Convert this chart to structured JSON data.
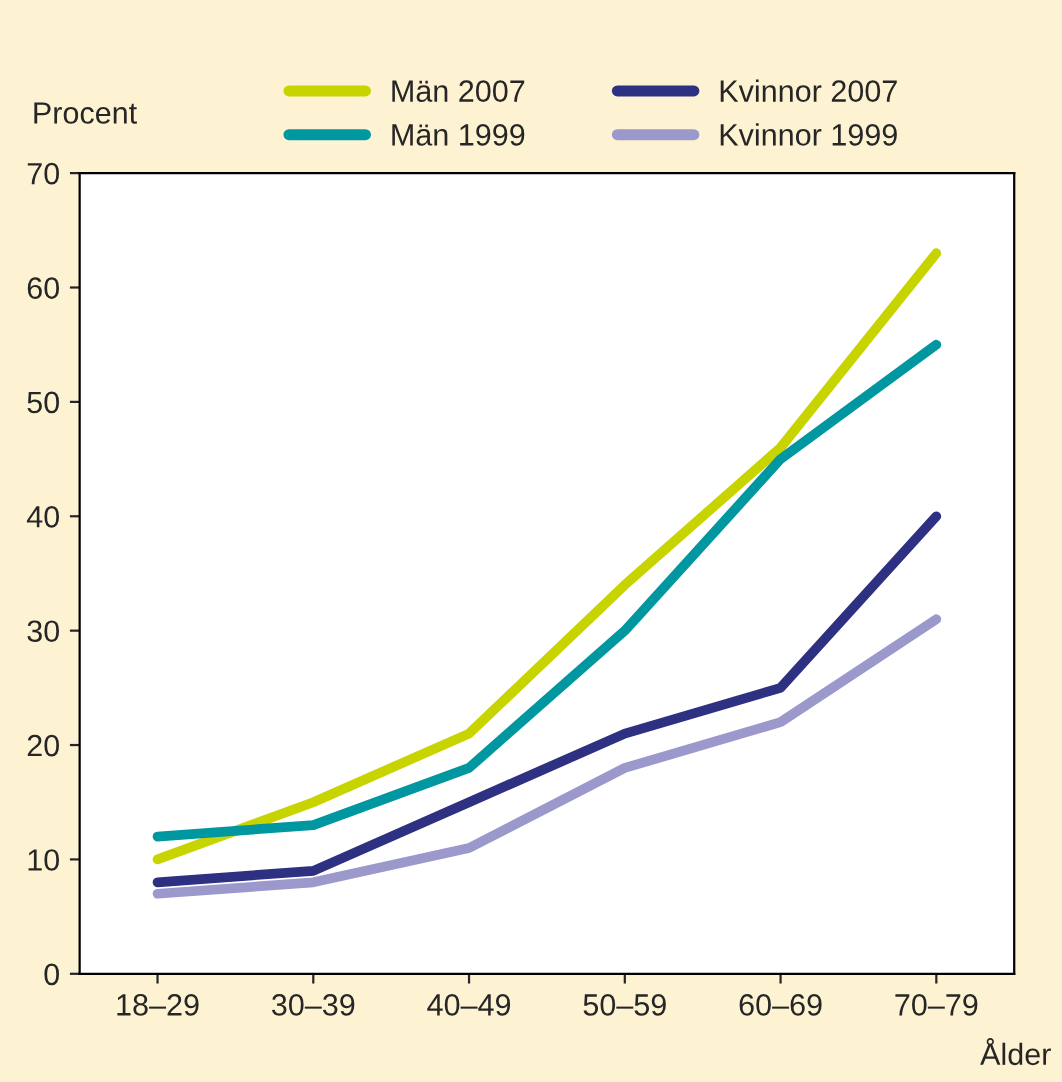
{
  "chart_data": {
    "type": "line",
    "xlabel": "Ålder",
    "ylabel": "Procent",
    "categories": [
      "18–29",
      "30–39",
      "40–49",
      "50–59",
      "60–69",
      "70–79"
    ],
    "series": [
      {
        "name": "Män 2007",
        "color": "#c8d400",
        "values": [
          10,
          15,
          21,
          34,
          46,
          63
        ]
      },
      {
        "name": "Män 1999",
        "color": "#0097a0",
        "values": [
          12,
          13,
          18,
          30,
          45,
          55
        ]
      },
      {
        "name": "Kvinnor 2007",
        "color": "#2e3181",
        "values": [
          8,
          9,
          15,
          21,
          25,
          40
        ]
      },
      {
        "name": "Kvinnor 1999",
        "color": "#9b98cc",
        "values": [
          7,
          8,
          11,
          18,
          22,
          31
        ]
      }
    ],
    "ylim": [
      0,
      70
    ],
    "yticks": [
      0,
      10,
      20,
      30,
      40,
      50,
      60,
      70
    ],
    "grid": false,
    "legend": "top",
    "line_style": "solid"
  }
}
